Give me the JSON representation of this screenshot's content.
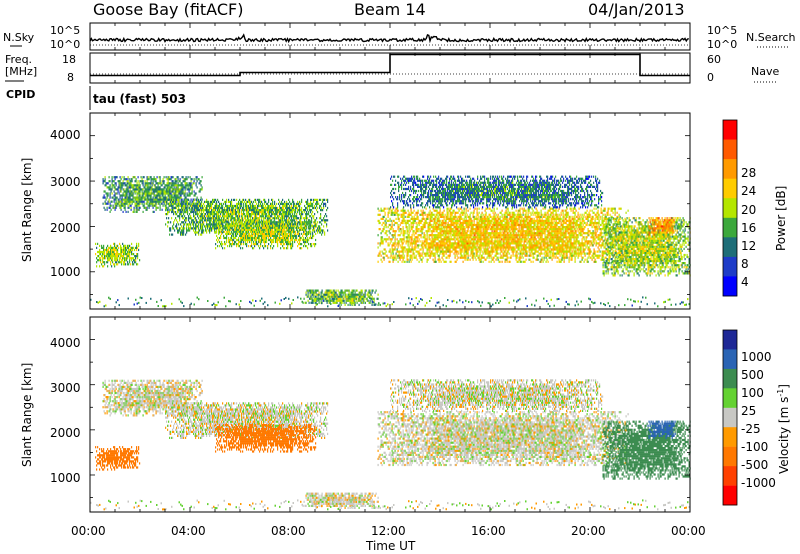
{
  "header": {
    "station": "Goose Bay (fitACF)",
    "beam": "Beam 14",
    "date": "04/Jan/2013"
  },
  "noise_panel": {
    "left_label": "N.Sky",
    "left_ticks": [
      "10^5",
      "10^0"
    ],
    "right_ticks": [
      "10^5",
      "10^0"
    ],
    "right_label": "N.Search"
  },
  "freq_panel": {
    "left_label_1": "Freq.",
    "left_label_2": "[MHz]",
    "left_ticks": [
      "18",
      "8"
    ],
    "right_ticks": [
      "60",
      "0"
    ],
    "right_label": "Nave"
  },
  "cpid_panel": {
    "left_label": "CPID",
    "mode_text": "tau (fast) 503"
  },
  "power_panel": {
    "ylabel": "Slant Range [km]",
    "yticks": [
      "4000",
      "3000",
      "2000",
      "1000"
    ],
    "colorbar_label": "Power [dB]",
    "colorbar_ticks": [
      "28",
      "24",
      "20",
      "16",
      "12",
      "8",
      "4"
    ],
    "colorbar_colors": [
      "#ff0000",
      "#ff5a00",
      "#ff9a00",
      "#ffcc00",
      "#b4e600",
      "#3ca83c",
      "#1e6e78",
      "#1e3cc8",
      "#0000ff"
    ]
  },
  "velocity_panel": {
    "ylabel": "Slant Range [km]",
    "yticks": [
      "4000",
      "3000",
      "2000",
      "1000"
    ],
    "colorbar_label": "Velocity [m s",
    "colorbar_label_sup": "-1",
    "colorbar_label_end": "]",
    "colorbar_ticks": [
      "1000",
      "500",
      "100",
      "25",
      "-25",
      "-100",
      "-500",
      "-1000"
    ],
    "colorbar_colors": [
      "#1e2896",
      "#2a64b4",
      "#3c8c50",
      "#64d232",
      "#c8c8c4",
      "#ff9a00",
      "#ff7800",
      "#ff4000",
      "#ff0000"
    ]
  },
  "xaxis": {
    "ticks": [
      "00:00",
      "04:00",
      "08:00",
      "12:00",
      "16:00",
      "20:00",
      "00:00"
    ],
    "label": "Time UT"
  },
  "chart_data": {
    "type": "heatmap",
    "x_range_hours": [
      0,
      24
    ],
    "y_range_km": [
      180,
      4500
    ],
    "frequency_segments_mhz": [
      {
        "start": 0,
        "end": 6,
        "value": 10.5
      },
      {
        "start": 6,
        "end": 12,
        "value": 11.5
      },
      {
        "start": 12,
        "end": 22,
        "value": 17.5
      },
      {
        "start": 22,
        "end": 24,
        "value": 10.5
      }
    ],
    "echo_regions": [
      {
        "t0": 0.2,
        "t1": 2.0,
        "r0": 1100,
        "r1": 1600,
        "power": 14,
        "velocity": -250
      },
      {
        "t0": 0.5,
        "t1": 4.5,
        "r0": 2300,
        "r1": 3100,
        "power": 10,
        "velocity": 0
      },
      {
        "t0": 3.0,
        "t1": 9.5,
        "r0": 1800,
        "r1": 2600,
        "power": 12,
        "velocity": 0
      },
      {
        "t0": 5.0,
        "t1": 9.0,
        "r0": 1500,
        "r1": 2100,
        "power": 14,
        "velocity": -150
      },
      {
        "t0": 8.5,
        "t1": 11.5,
        "r0": 250,
        "r1": 600,
        "power": 12,
        "velocity": 0
      },
      {
        "t0": 11.5,
        "t1": 21.5,
        "r0": 1200,
        "r1": 2400,
        "power": 18,
        "velocity": 0
      },
      {
        "t0": 12.0,
        "t1": 20.5,
        "r0": 2400,
        "r1": 3100,
        "power": 8,
        "velocity": 0
      },
      {
        "t0": 20.5,
        "t1": 24.0,
        "r0": 900,
        "r1": 2200,
        "power": 14,
        "velocity": 150
      },
      {
        "t0": 22.3,
        "t1": 23.4,
        "r0": 1800,
        "r1": 2200,
        "power": 22,
        "velocity": 800
      }
    ]
  }
}
